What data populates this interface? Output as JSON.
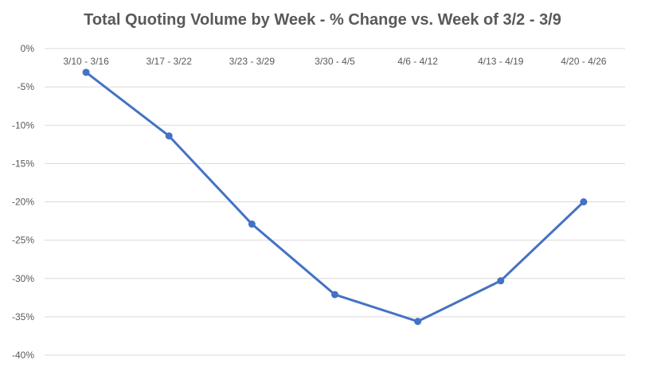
{
  "chart_data": {
    "type": "line",
    "title": "Total Quoting Volume by Week - % Change vs. Week of 3/2 - 3/9",
    "xlabel": "",
    "ylabel": "",
    "categories": [
      "3/10 - 3/16",
      "3/17 - 3/22",
      "3/23 - 3/29",
      "3/30 - 4/5",
      "4/6 - 4/12",
      "4/13 - 4/19",
      "4/20 - 4/26"
    ],
    "series": [
      {
        "values": [
          -3.1,
          -11.4,
          -22.9,
          -32.1,
          -35.6,
          -30.3,
          -20.0
        ],
        "color": "#4472C4"
      }
    ],
    "ylim": [
      -40,
      0
    ],
    "yticks": [
      0,
      -5,
      -10,
      -15,
      -20,
      -25,
      -30,
      -35,
      -40
    ],
    "ytick_labels": [
      "0%",
      "-5%",
      "-10%",
      "-15%",
      "-20%",
      "-25%",
      "-30%",
      "-35%",
      "-40%"
    ],
    "x_tick_position": "top",
    "grid": true,
    "legend": "none",
    "markers": true
  }
}
